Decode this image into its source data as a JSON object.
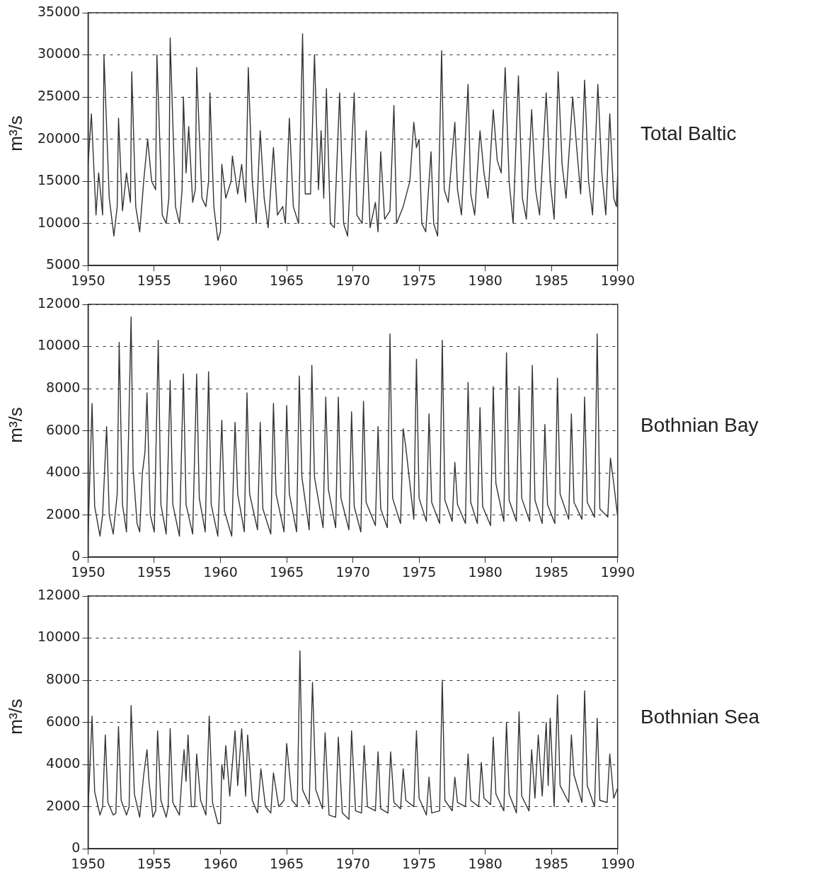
{
  "chart_data": [
    {
      "type": "line",
      "title": "Total Baltic",
      "ylabel": "m³/s",
      "xlim": [
        1950,
        1990
      ],
      "xticks": [
        1950,
        1955,
        1960,
        1965,
        1970,
        1975,
        1980,
        1985,
        1990
      ],
      "ylim": [
        5000,
        35000
      ],
      "yticks": [
        5000,
        10000,
        15000,
        20000,
        25000,
        30000,
        35000
      ],
      "grid": "y",
      "legend": false,
      "marker": "none",
      "line_style": "solid",
      "series": [
        {
          "color": "#333333",
          "x": [
            1950.0,
            1950.25,
            1950.6,
            1950.8,
            1951.1,
            1951.2,
            1951.6,
            1951.95,
            1952.2,
            1952.3,
            1952.6,
            1952.9,
            1953.2,
            1953.3,
            1953.6,
            1953.9,
            1954.2,
            1954.5,
            1954.8,
            1955.1,
            1955.2,
            1955.6,
            1955.9,
            1956.1,
            1956.2,
            1956.6,
            1956.9,
            1957.1,
            1957.2,
            1957.4,
            1957.6,
            1957.9,
            1958.1,
            1958.2,
            1958.6,
            1958.9,
            1959.1,
            1959.2,
            1959.5,
            1959.8,
            1960.0,
            1960.1,
            1960.4,
            1960.8,
            1960.9,
            1961.3,
            1961.6,
            1961.9,
            1962.1,
            1962.4,
            1962.7,
            1963.0,
            1963.3,
            1963.6,
            1964.0,
            1964.3,
            1964.7,
            1964.9,
            1965.2,
            1965.5,
            1965.9,
            1966.2,
            1966.4,
            1966.8,
            1967.1,
            1967.4,
            1967.6,
            1967.8,
            1968.0,
            1968.3,
            1968.6,
            1969.0,
            1969.3,
            1969.6,
            1970.1,
            1970.3,
            1970.7,
            1971.0,
            1971.3,
            1971.7,
            1971.9,
            1972.1,
            1972.4,
            1972.8,
            1973.1,
            1973.3,
            1973.8,
            1974.3,
            1974.6,
            1974.8,
            1975.0,
            1975.2,
            1975.5,
            1975.9,
            1976.1,
            1976.4,
            1976.7,
            1976.9,
            1977.2,
            1977.7,
            1977.9,
            1978.2,
            1978.7,
            1978.9,
            1979.2,
            1979.6,
            1979.9,
            1980.2,
            1980.6,
            1980.9,
            1981.2,
            1981.5,
            1981.8,
            1982.1,
            1982.5,
            1982.8,
            1983.1,
            1983.5,
            1983.8,
            1984.1,
            1984.6,
            1984.9,
            1985.2,
            1985.5,
            1985.8,
            1986.1,
            1986.6,
            1986.9,
            1987.2,
            1987.5,
            1987.8,
            1988.1,
            1988.5,
            1988.8,
            1989.1,
            1989.4,
            1989.7,
            1989.9,
            1990.0
          ],
          "values": [
            17000,
            23000,
            11000,
            16000,
            11000,
            30000,
            13000,
            8500,
            12000,
            22500,
            11500,
            16000,
            12500,
            28000,
            12000,
            9000,
            15000,
            20000,
            15000,
            14000,
            30000,
            11000,
            10000,
            13000,
            32000,
            12000,
            10000,
            14000,
            25000,
            16000,
            21500,
            12500,
            14000,
            28500,
            13000,
            12000,
            15000,
            25500,
            12000,
            8000,
            9000,
            17000,
            13000,
            15000,
            18000,
            13500,
            17000,
            12500,
            28500,
            15000,
            10000,
            21000,
            13000,
            9500,
            19000,
            11000,
            12000,
            10000,
            22500,
            12000,
            10000,
            32500,
            13500,
            13500,
            30000,
            14000,
            21000,
            13000,
            26000,
            10000,
            9500,
            25500,
            10000,
            8500,
            25500,
            11000,
            10000,
            21000,
            9500,
            12500,
            9000,
            18500,
            10500,
            11500,
            24000,
            10000,
            12000,
            15000,
            22000,
            19000,
            20000,
            10000,
            9000,
            18500,
            10000,
            8500,
            30500,
            14000,
            12500,
            22000,
            14000,
            11000,
            26500,
            13500,
            11000,
            21000,
            16000,
            13000,
            23500,
            17500,
            16000,
            28500,
            15000,
            10000,
            27500,
            13000,
            10500,
            23500,
            14000,
            11000,
            25500,
            15000,
            10500,
            28000,
            17000,
            13000,
            25000,
            19000,
            13500,
            27000,
            15000,
            11000,
            26500,
            16000,
            11000,
            23000,
            13000,
            12000,
            16000
          ]
        }
      ]
    },
    {
      "type": "line",
      "title": "Bothnian Bay",
      "ylabel": "m³/s",
      "xlim": [
        1950,
        1990
      ],
      "xticks": [
        1950,
        1955,
        1960,
        1965,
        1970,
        1975,
        1980,
        1985,
        1990
      ],
      "ylim": [
        0,
        12000
      ],
      "yticks": [
        0,
        2000,
        4000,
        6000,
        8000,
        10000,
        12000
      ],
      "grid": "y",
      "legend": false,
      "marker": "none",
      "line_style": "solid",
      "series": [
        {
          "color": "#333333",
          "x": [
            1950.0,
            1950.3,
            1950.5,
            1950.9,
            1951.1,
            1951.4,
            1951.6,
            1951.9,
            1952.2,
            1952.35,
            1952.6,
            1952.9,
            1953.25,
            1953.4,
            1953.7,
            1953.9,
            1954.1,
            1954.3,
            1954.45,
            1954.7,
            1955.0,
            1955.3,
            1955.5,
            1955.9,
            1956.2,
            1956.4,
            1956.9,
            1957.2,
            1957.4,
            1957.9,
            1958.2,
            1958.4,
            1958.85,
            1959.1,
            1959.3,
            1959.8,
            1960.1,
            1960.3,
            1960.85,
            1961.1,
            1961.3,
            1961.8,
            1962.0,
            1962.2,
            1962.8,
            1963.0,
            1963.2,
            1963.8,
            1964.0,
            1964.2,
            1964.8,
            1965.0,
            1965.2,
            1965.75,
            1965.95,
            1966.15,
            1966.7,
            1966.9,
            1967.1,
            1967.75,
            1967.95,
            1968.15,
            1968.7,
            1968.9,
            1969.1,
            1969.7,
            1969.9,
            1970.1,
            1970.6,
            1970.8,
            1971.0,
            1971.7,
            1971.9,
            1972.1,
            1972.6,
            1972.8,
            1973.0,
            1973.6,
            1973.8,
            1974.0,
            1974.6,
            1974.8,
            1975.0,
            1975.55,
            1975.75,
            1975.95,
            1976.55,
            1976.75,
            1976.95,
            1977.5,
            1977.7,
            1977.9,
            1978.5,
            1978.7,
            1978.9,
            1979.4,
            1979.6,
            1979.8,
            1980.4,
            1980.6,
            1980.8,
            1981.4,
            1981.6,
            1981.8,
            1982.35,
            1982.55,
            1982.75,
            1983.35,
            1983.55,
            1983.75,
            1984.3,
            1984.5,
            1984.7,
            1985.25,
            1985.45,
            1985.65,
            1986.3,
            1986.5,
            1986.7,
            1987.3,
            1987.5,
            1987.7,
            1988.25,
            1988.45,
            1988.65,
            1989.25,
            1989.45,
            1989.7,
            1990.0
          ],
          "values": [
            1000,
            7300,
            2400,
            1000,
            2000,
            6200,
            2000,
            1100,
            3000,
            10200,
            2500,
            1200,
            11400,
            4200,
            1600,
            1200,
            4000,
            5000,
            7800,
            2000,
            1200,
            10300,
            2500,
            1100,
            8400,
            2500,
            1000,
            8700,
            2500,
            1100,
            8700,
            2800,
            1200,
            8800,
            2500,
            1000,
            6500,
            2200,
            1000,
            6400,
            3000,
            1200,
            7800,
            3000,
            1300,
            6400,
            2300,
            1100,
            7300,
            3000,
            1200,
            7200,
            3000,
            1200,
            8600,
            3800,
            1300,
            9100,
            3800,
            1400,
            7600,
            3200,
            1400,
            7600,
            2800,
            1300,
            6900,
            2400,
            1200,
            7400,
            2600,
            1500,
            6200,
            2300,
            1400,
            10600,
            2800,
            1600,
            6100,
            5200,
            1800,
            9400,
            2800,
            1700,
            6800,
            2600,
            1600,
            10300,
            2700,
            1700,
            4500,
            2500,
            1600,
            8300,
            2600,
            1600,
            7100,
            2400,
            1500,
            8100,
            3500,
            1700,
            9700,
            2700,
            1700,
            8100,
            2800,
            1700,
            9100,
            2700,
            1600,
            6300,
            2500,
            1600,
            8500,
            3000,
            1800,
            6800,
            2600,
            1800,
            7600,
            2600,
            1900,
            10600,
            2300,
            1900,
            4700,
            3500,
            1900
          ]
        }
      ]
    },
    {
      "type": "line",
      "title": "Bothnian Sea",
      "ylabel": "m³/s",
      "xlim": [
        1950,
        1990
      ],
      "xticks": [
        1950,
        1955,
        1960,
        1965,
        1970,
        1975,
        1980,
        1985,
        1990
      ],
      "ylim": [
        0,
        12000
      ],
      "yticks": [
        0,
        2000,
        4000,
        6000,
        8000,
        10000,
        12000
      ],
      "grid": "y",
      "legend": false,
      "marker": "none",
      "line_style": "solid",
      "series": [
        {
          "color": "#333333",
          "x": [
            1950.0,
            1950.3,
            1950.5,
            1950.9,
            1951.1,
            1951.3,
            1951.5,
            1951.9,
            1952.1,
            1952.3,
            1952.5,
            1952.9,
            1953.1,
            1953.25,
            1953.5,
            1953.9,
            1954.2,
            1954.45,
            1954.6,
            1954.9,
            1955.1,
            1955.25,
            1955.5,
            1955.9,
            1956.05,
            1956.2,
            1956.4,
            1956.9,
            1957.1,
            1957.25,
            1957.4,
            1957.55,
            1957.8,
            1958.05,
            1958.2,
            1958.5,
            1958.9,
            1959.15,
            1959.4,
            1959.8,
            1960.0,
            1960.1,
            1960.25,
            1960.4,
            1960.7,
            1961.1,
            1961.3,
            1961.6,
            1961.9,
            1962.05,
            1962.4,
            1962.8,
            1963.05,
            1963.4,
            1963.8,
            1964.0,
            1964.4,
            1964.8,
            1965.0,
            1965.4,
            1965.8,
            1966.0,
            1966.2,
            1966.7,
            1966.95,
            1967.2,
            1967.7,
            1967.9,
            1968.2,
            1968.7,
            1968.9,
            1969.2,
            1969.7,
            1969.9,
            1970.2,
            1970.65,
            1970.85,
            1971.1,
            1971.7,
            1971.9,
            1972.1,
            1972.65,
            1972.85,
            1973.1,
            1973.6,
            1973.8,
            1974.0,
            1974.6,
            1974.8,
            1975.0,
            1975.55,
            1975.75,
            1975.95,
            1976.55,
            1976.75,
            1976.95,
            1977.5,
            1977.7,
            1977.9,
            1978.5,
            1978.7,
            1978.9,
            1979.5,
            1979.7,
            1979.9,
            1980.4,
            1980.6,
            1980.8,
            1981.4,
            1981.6,
            1981.8,
            1982.35,
            1982.55,
            1982.75,
            1983.3,
            1983.5,
            1983.75,
            1984.0,
            1984.3,
            1984.6,
            1984.75,
            1984.9,
            1985.2,
            1985.45,
            1985.65,
            1986.3,
            1986.5,
            1986.7,
            1987.3,
            1987.5,
            1987.7,
            1988.25,
            1988.45,
            1988.65,
            1989.2,
            1989.4,
            1989.7,
            1990.0
          ],
          "values": [
            1800,
            6300,
            2700,
            1600,
            2000,
            5400,
            2200,
            1600,
            1700,
            5800,
            2300,
            1600,
            2000,
            6800,
            2600,
            1500,
            3500,
            4700,
            3200,
            1500,
            1800,
            5600,
            2300,
            1500,
            2000,
            5700,
            2200,
            1600,
            3500,
            4700,
            3200,
            5400,
            2000,
            2000,
            4500,
            2300,
            1600,
            6300,
            2200,
            1200,
            1200,
            4000,
            3300,
            4900,
            2500,
            5600,
            3000,
            5700,
            2500,
            5400,
            2300,
            1700,
            3800,
            2000,
            1700,
            3600,
            2000,
            2300,
            5000,
            2300,
            2000,
            9400,
            2800,
            2100,
            7900,
            2800,
            1900,
            5500,
            1600,
            1500,
            5300,
            1700,
            1400,
            5600,
            1800,
            1700,
            4900,
            2000,
            1800,
            4600,
            1900,
            1700,
            4600,
            2200,
            1900,
            3800,
            2300,
            2000,
            5600,
            2400,
            1600,
            3400,
            1700,
            1800,
            8000,
            2300,
            1800,
            3400,
            2200,
            2000,
            4500,
            2300,
            2000,
            4100,
            2400,
            2100,
            5300,
            2600,
            1800,
            6000,
            2600,
            1700,
            6500,
            2500,
            1800,
            4700,
            2400,
            5400,
            2500,
            6000,
            3000,
            6200,
            2000,
            7300,
            3000,
            2200,
            5400,
            3500,
            2200,
            7500,
            3000,
            2000,
            6200,
            2300,
            2200,
            4500,
            2400,
            2900
          ]
        }
      ]
    }
  ]
}
